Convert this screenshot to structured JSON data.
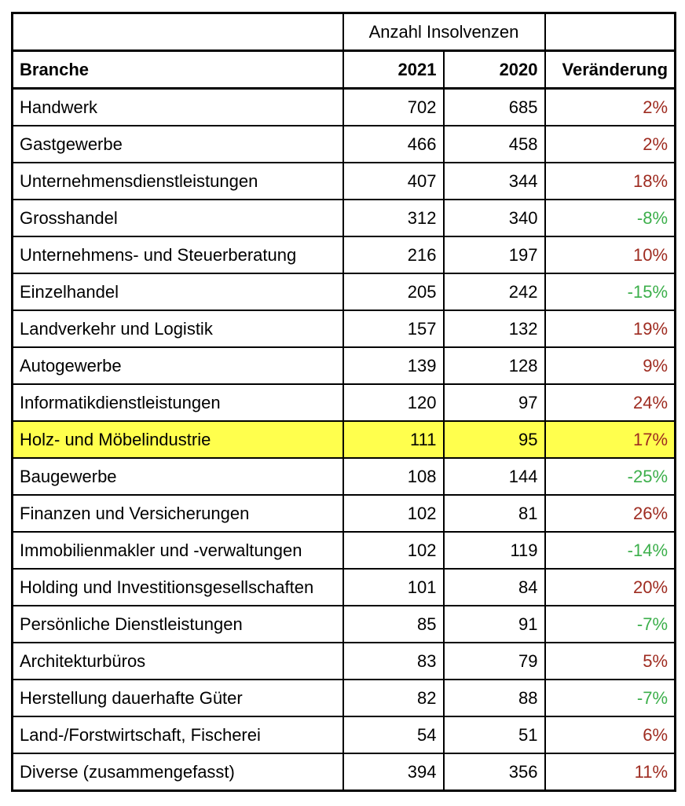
{
  "colors": {
    "increase_text": "#9E2B20",
    "decrease_text": "#3CAF4B",
    "highlight_row": "#FFFF4D",
    "border": "#000000",
    "background": "#FFFFFF"
  },
  "chart_data": {
    "type": "table",
    "group_header": "Anzahl Insolvenzen",
    "columns": [
      "Branche",
      "2021",
      "2020",
      "Veränderung"
    ],
    "rows": [
      {
        "branche": "Handwerk",
        "insolvenzen_2021": 702,
        "insolvenzen_2020": 685,
        "veraenderung": "2%",
        "trend": "increase",
        "highlighted": false
      },
      {
        "branche": "Gastgewerbe",
        "insolvenzen_2021": 466,
        "insolvenzen_2020": 458,
        "veraenderung": "2%",
        "trend": "increase",
        "highlighted": false
      },
      {
        "branche": "Unternehmensdienstleistungen",
        "insolvenzen_2021": 407,
        "insolvenzen_2020": 344,
        "veraenderung": "18%",
        "trend": "increase",
        "highlighted": false
      },
      {
        "branche": "Grosshandel",
        "insolvenzen_2021": 312,
        "insolvenzen_2020": 340,
        "veraenderung": "-8%",
        "trend": "decrease",
        "highlighted": false
      },
      {
        "branche": "Unternehmens- und Steuerberatung",
        "insolvenzen_2021": 216,
        "insolvenzen_2020": 197,
        "veraenderung": "10%",
        "trend": "increase",
        "highlighted": false
      },
      {
        "branche": "Einzelhandel",
        "insolvenzen_2021": 205,
        "insolvenzen_2020": 242,
        "veraenderung": "-15%",
        "trend": "decrease",
        "highlighted": false
      },
      {
        "branche": "Landverkehr und Logistik",
        "insolvenzen_2021": 157,
        "insolvenzen_2020": 132,
        "veraenderung": "19%",
        "trend": "increase",
        "highlighted": false
      },
      {
        "branche": "Autogewerbe",
        "insolvenzen_2021": 139,
        "insolvenzen_2020": 128,
        "veraenderung": "9%",
        "trend": "increase",
        "highlighted": false
      },
      {
        "branche": "Informatikdienstleistungen",
        "insolvenzen_2021": 120,
        "insolvenzen_2020": 97,
        "veraenderung": "24%",
        "trend": "increase",
        "highlighted": false
      },
      {
        "branche": "Holz- und Möbelindustrie",
        "insolvenzen_2021": 111,
        "insolvenzen_2020": 95,
        "veraenderung": "17%",
        "trend": "increase",
        "highlighted": true
      },
      {
        "branche": "Baugewerbe",
        "insolvenzen_2021": 108,
        "insolvenzen_2020": 144,
        "veraenderung": "-25%",
        "trend": "decrease",
        "highlighted": false
      },
      {
        "branche": "Finanzen und Versicherungen",
        "insolvenzen_2021": 102,
        "insolvenzen_2020": 81,
        "veraenderung": "26%",
        "trend": "increase",
        "highlighted": false
      },
      {
        "branche": "Immobilienmakler und -verwaltungen",
        "insolvenzen_2021": 102,
        "insolvenzen_2020": 119,
        "veraenderung": "-14%",
        "trend": "decrease",
        "highlighted": false
      },
      {
        "branche": "Holding und Investitionsgesellschaften",
        "insolvenzen_2021": 101,
        "insolvenzen_2020": 84,
        "veraenderung": "20%",
        "trend": "increase",
        "highlighted": false
      },
      {
        "branche": "Persönliche Dienstleistungen",
        "insolvenzen_2021": 85,
        "insolvenzen_2020": 91,
        "veraenderung": "-7%",
        "trend": "decrease",
        "highlighted": false
      },
      {
        "branche": "Architekturbüros",
        "insolvenzen_2021": 83,
        "insolvenzen_2020": 79,
        "veraenderung": "5%",
        "trend": "increase",
        "highlighted": false
      },
      {
        "branche": "Herstellung dauerhafte Güter",
        "insolvenzen_2021": 82,
        "insolvenzen_2020": 88,
        "veraenderung": "-7%",
        "trend": "decrease",
        "highlighted": false
      },
      {
        "branche": "Land-/Forstwirtschaft, Fischerei",
        "insolvenzen_2021": 54,
        "insolvenzen_2020": 51,
        "veraenderung": "6%",
        "trend": "increase",
        "highlighted": false
      },
      {
        "branche": "Diverse (zusammengefasst)",
        "insolvenzen_2021": 394,
        "insolvenzen_2020": 356,
        "veraenderung": "11%",
        "trend": "increase",
        "highlighted": false
      }
    ]
  }
}
